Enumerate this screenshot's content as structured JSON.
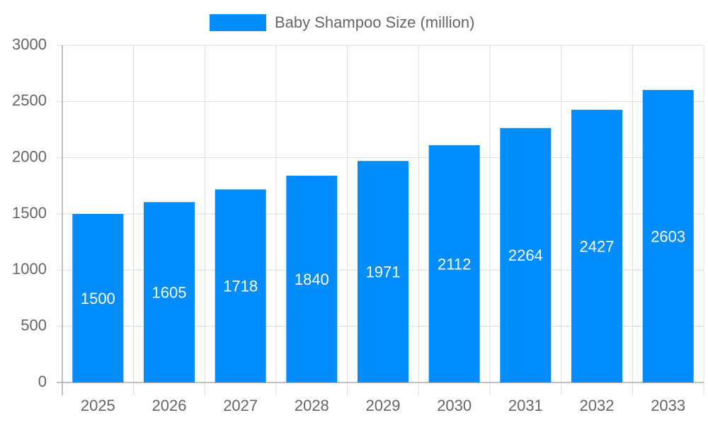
{
  "chart_data": {
    "type": "bar",
    "categories": [
      "2025",
      "2026",
      "2027",
      "2028",
      "2029",
      "2030",
      "2031",
      "2032",
      "2033"
    ],
    "series": [
      {
        "name": "Baby Shampoo Size (million)",
        "color": "#038cfc",
        "values": [
          1500,
          1605,
          1718,
          1840,
          1971,
          2112,
          2264,
          2427,
          2603
        ]
      }
    ],
    "ylim": [
      0,
      3000
    ],
    "yticks": [
      0,
      500,
      1000,
      1500,
      2000,
      2500,
      3000
    ],
    "grid": true,
    "legend": "top"
  }
}
